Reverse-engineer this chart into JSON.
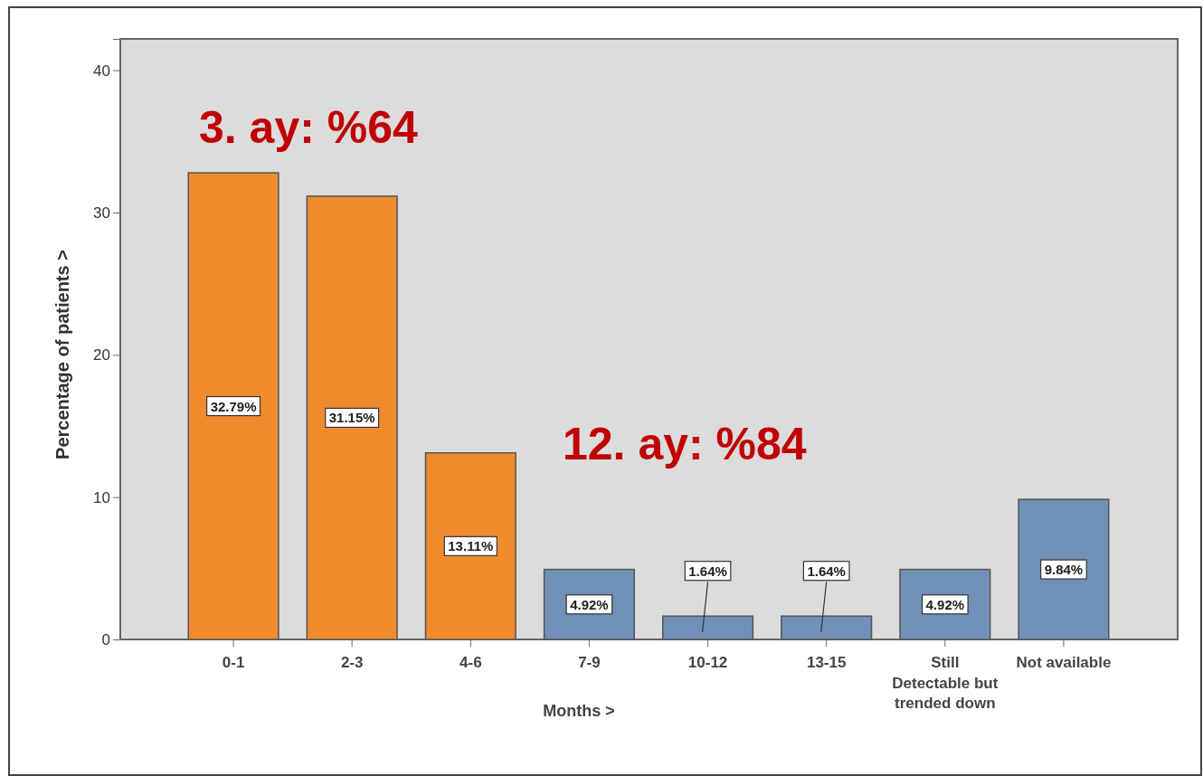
{
  "chart_data": {
    "type": "bar",
    "xlabel": "Months >",
    "ylabel": "Percentage of patients >",
    "categories": [
      "0-1",
      "2-3",
      "4-6",
      "7-9",
      "10-12",
      "13-15",
      "Still Detectable but trended down",
      "Not available"
    ],
    "values": [
      32.79,
      31.15,
      13.11,
      4.92,
      1.64,
      1.64,
      4.92,
      9.84
    ],
    "value_labels": [
      "32.79%",
      "31.15%",
      "13.11%",
      "4.92%",
      "1.64%",
      "1.64%",
      "4.92%",
      "9.84%"
    ],
    "colors": [
      "#f08c2e",
      "#f08c2e",
      "#f08c2e",
      "#7090b8",
      "#7090b8",
      "#7090b8",
      "#7090b8",
      "#7090b8"
    ],
    "ylim": [
      0,
      42.2
    ],
    "yticks": [
      0,
      10,
      20,
      30,
      40
    ],
    "annotations": [
      "3. ay: %64",
      "12. ay: %84"
    ]
  }
}
